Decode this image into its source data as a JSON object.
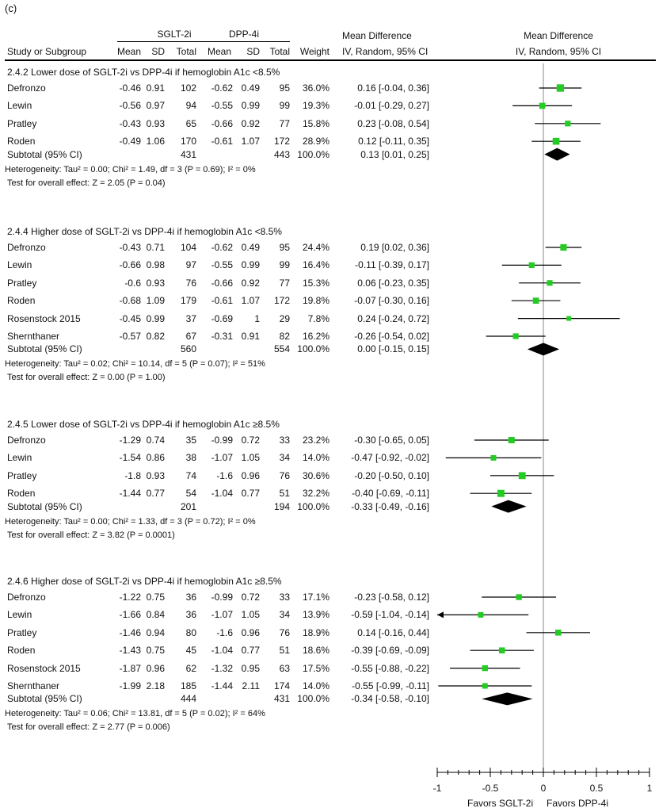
{
  "panel_label": "(c)",
  "header": {
    "group1": "SGLT-2i",
    "group2": "DPP-4i",
    "md_title": "Mean Difference",
    "md_sub": "IV, Random, 95% CI",
    "study_col": "Study or Subgroup",
    "mean": "Mean",
    "sd": "SD",
    "total": "Total",
    "weight": "Weight"
  },
  "subgroups": [
    {
      "title": "2.4.2 Lower dose of SGLT-2i vs DPP-4i if hemoglobin A1c <8.5%",
      "studies": [
        {
          "name": "Defronzo",
          "m1": "-0.46",
          "sd1": "0.91",
          "n1": "102",
          "m2": "-0.62",
          "sd2": "0.49",
          "n2": "95",
          "weight": "36.0%",
          "ci": "0.16 [-0.04, 0.36]"
        },
        {
          "name": "Lewin",
          "m1": "-0.56",
          "sd1": "0.97",
          "n1": "94",
          "m2": "-0.55",
          "sd2": "0.99",
          "n2": "99",
          "weight": "19.3%",
          "ci": "-0.01 [-0.29, 0.27]"
        },
        {
          "name": "Pratley",
          "m1": "-0.43",
          "sd1": "0.93",
          "n1": "65",
          "m2": "-0.66",
          "sd2": "0.92",
          "n2": "77",
          "weight": "15.8%",
          "ci": "0.23 [-0.08, 0.54]"
        },
        {
          "name": "Roden",
          "m1": "-0.49",
          "sd1": "1.06",
          "n1": "170",
          "m2": "-0.61",
          "sd2": "1.07",
          "n2": "172",
          "weight": "28.9%",
          "ci": "0.12 [-0.11, 0.35]"
        }
      ],
      "subtotal": {
        "label": "Subtotal (95% CI)",
        "n1": "431",
        "n2": "443",
        "weight": "100.0%",
        "ci": "0.13 [0.01, 0.25]"
      },
      "heterogeneity": "Heterogeneity: Tau² = 0.00; Chi² = 1.49, df = 3 (P = 0.69); I² = 0%",
      "overall": "Test for overall effect: Z = 2.05 (P = 0.04)"
    },
    {
      "title": "2.4.4 Higher dose of SGLT-2i vs DPP-4i if hemoglobin A1c <8.5%",
      "studies": [
        {
          "name": "Defronzo",
          "m1": "-0.43",
          "sd1": "0.71",
          "n1": "104",
          "m2": "-0.62",
          "sd2": "0.49",
          "n2": "95",
          "weight": "24.4%",
          "ci": "0.19 [0.02, 0.36]"
        },
        {
          "name": "Lewin",
          "m1": "-0.66",
          "sd1": "0.98",
          "n1": "97",
          "m2": "-0.55",
          "sd2": "0.99",
          "n2": "99",
          "weight": "16.4%",
          "ci": "-0.11 [-0.39, 0.17]"
        },
        {
          "name": "Pratley",
          "m1": "-0.6",
          "sd1": "0.93",
          "n1": "76",
          "m2": "-0.66",
          "sd2": "0.92",
          "n2": "77",
          "weight": "15.3%",
          "ci": "0.06 [-0.23, 0.35]"
        },
        {
          "name": "Roden",
          "m1": "-0.68",
          "sd1": "1.09",
          "n1": "179",
          "m2": "-0.61",
          "sd2": "1.07",
          "n2": "172",
          "weight": "19.8%",
          "ci": "-0.07 [-0.30, 0.16]"
        },
        {
          "name": "Rosenstock 2015",
          "m1": "-0.45",
          "sd1": "0.99",
          "n1": "37",
          "m2": "-0.69",
          "sd2": "1",
          "n2": "29",
          "weight": "7.8%",
          "ci": "0.24 [-0.24, 0.72]"
        },
        {
          "name": "Shernthaner",
          "m1": "-0.57",
          "sd1": "0.82",
          "n1": "67",
          "m2": "-0.31",
          "sd2": "0.91",
          "n2": "82",
          "weight": "16.2%",
          "ci": "-0.26 [-0.54, 0.02]"
        }
      ],
      "subtotal": {
        "label": "Subtotal (95% CI)",
        "n1": "560",
        "n2": "554",
        "weight": "100.0%",
        "ci": "0.00 [-0.15, 0.15]"
      },
      "heterogeneity": "Heterogeneity: Tau² = 0.02; Chi² = 10.14, df = 5 (P = 0.07); I² = 51%",
      "overall": "Test for overall effect: Z = 0.00 (P = 1.00)"
    },
    {
      "title": "2.4.5 Lower dose of SGLT-2i vs DPP-4i if hemoglobin A1c ≥8.5%",
      "studies": [
        {
          "name": "Defronzo",
          "m1": "-1.29",
          "sd1": "0.74",
          "n1": "35",
          "m2": "-0.99",
          "sd2": "0.72",
          "n2": "33",
          "weight": "23.2%",
          "ci": "-0.30 [-0.65, 0.05]"
        },
        {
          "name": "Lewin",
          "m1": "-1.54",
          "sd1": "0.86",
          "n1": "38",
          "m2": "-1.07",
          "sd2": "1.05",
          "n2": "34",
          "weight": "14.0%",
          "ci": "-0.47 [-0.92, -0.02]"
        },
        {
          "name": "Pratley",
          "m1": "-1.8",
          "sd1": "0.93",
          "n1": "74",
          "m2": "-1.6",
          "sd2": "0.96",
          "n2": "76",
          "weight": "30.6%",
          "ci": "-0.20 [-0.50, 0.10]"
        },
        {
          "name": "Roden",
          "m1": "-1.44",
          "sd1": "0.77",
          "n1": "54",
          "m2": "-1.04",
          "sd2": "0.77",
          "n2": "51",
          "weight": "32.2%",
          "ci": "-0.40 [-0.69, -0.11]"
        }
      ],
      "subtotal": {
        "label": "Subtotal (95% CI)",
        "n1": "201",
        "n2": "194",
        "weight": "100.0%",
        "ci": "-0.33 [-0.49, -0.16]"
      },
      "heterogeneity": "Heterogeneity: Tau² = 0.00; Chi² = 1.33, df = 3 (P = 0.72); I² = 0%",
      "overall": "Test for overall effect: Z = 3.82 (P = 0.0001)"
    },
    {
      "title": "2.4.6 Higher dose of SGLT-2i vs DPP-4i if hemoglobin A1c ≥8.5%",
      "studies": [
        {
          "name": "Defronzo",
          "m1": "-1.22",
          "sd1": "0.75",
          "n1": "36",
          "m2": "-0.99",
          "sd2": "0.72",
          "n2": "33",
          "weight": "17.1%",
          "ci": "-0.23 [-0.58, 0.12]"
        },
        {
          "name": "Lewin",
          "m1": "-1.66",
          "sd1": "0.84",
          "n1": "36",
          "m2": "-1.07",
          "sd2": "1.05",
          "n2": "34",
          "weight": "13.9%",
          "ci": "-0.59 [-1.04, -0.14]"
        },
        {
          "name": "Pratley",
          "m1": "-1.46",
          "sd1": "0.94",
          "n1": "80",
          "m2": "-1.6",
          "sd2": "0.96",
          "n2": "76",
          "weight": "18.9%",
          "ci": "0.14 [-0.16, 0.44]"
        },
        {
          "name": "Roden",
          "m1": "-1.43",
          "sd1": "0.75",
          "n1": "45",
          "m2": "-1.04",
          "sd2": "0.77",
          "n2": "51",
          "weight": "18.6%",
          "ci": "-0.39 [-0.69, -0.09]"
        },
        {
          "name": "Rosenstock 2015",
          "m1": "-1.87",
          "sd1": "0.96",
          "n1": "62",
          "m2": "-1.32",
          "sd2": "0.95",
          "n2": "63",
          "weight": "17.5%",
          "ci": "-0.55 [-0.88, -0.22]"
        },
        {
          "name": "Shernthaner",
          "m1": "-1.99",
          "sd1": "2.18",
          "n1": "185",
          "m2": "-1.44",
          "sd2": "2.11",
          "n2": "174",
          "weight": "14.0%",
          "ci": "-0.55 [-0.99, -0.11]"
        }
      ],
      "subtotal": {
        "label": "Subtotal (95% CI)",
        "n1": "444",
        "n2": "431",
        "weight": "100.0%",
        "ci": "-0.34 [-0.58, -0.10]"
      },
      "heterogeneity": "Heterogeneity: Tau² = 0.06; Chi² = 13.81, df = 5 (P = 0.02); I² = 64%",
      "overall": "Test for overall effect: Z = 2.77 (P = 0.006)"
    }
  ],
  "chart_data": {
    "type": "forest",
    "title": "Mean Difference, IV, Random, 95% CI",
    "xlim": [
      -1,
      1
    ],
    "xticks": [
      -1,
      -0.5,
      0,
      0.5,
      1
    ],
    "xtick_labels": [
      "-1",
      "-0.5",
      "0",
      "0.5",
      "1"
    ],
    "favors_left": "Favors SGLT-2i",
    "favors_right": "Favors DPP-4i",
    "marker_color": "#22cc22",
    "diamond_color": "#000000",
    "subgroups": [
      {
        "studies": [
          {
            "md": 0.16,
            "lo": -0.04,
            "hi": 0.36,
            "w": 36.0
          },
          {
            "md": -0.01,
            "lo": -0.29,
            "hi": 0.27,
            "w": 19.3
          },
          {
            "md": 0.23,
            "lo": -0.08,
            "hi": 0.54,
            "w": 15.8
          },
          {
            "md": 0.12,
            "lo": -0.11,
            "hi": 0.35,
            "w": 28.9
          }
        ],
        "pooled": {
          "md": 0.13,
          "lo": 0.01,
          "hi": 0.25
        }
      },
      {
        "studies": [
          {
            "md": 0.19,
            "lo": 0.02,
            "hi": 0.36,
            "w": 24.4
          },
          {
            "md": -0.11,
            "lo": -0.39,
            "hi": 0.17,
            "w": 16.4
          },
          {
            "md": 0.06,
            "lo": -0.23,
            "hi": 0.35,
            "w": 15.3
          },
          {
            "md": -0.07,
            "lo": -0.3,
            "hi": 0.16,
            "w": 19.8
          },
          {
            "md": 0.24,
            "lo": -0.24,
            "hi": 0.72,
            "w": 7.8
          },
          {
            "md": -0.26,
            "lo": -0.54,
            "hi": 0.02,
            "w": 16.2
          }
        ],
        "pooled": {
          "md": 0.0,
          "lo": -0.15,
          "hi": 0.15
        }
      },
      {
        "studies": [
          {
            "md": -0.3,
            "lo": -0.65,
            "hi": 0.05,
            "w": 23.2
          },
          {
            "md": -0.47,
            "lo": -0.92,
            "hi": -0.02,
            "w": 14.0
          },
          {
            "md": -0.2,
            "lo": -0.5,
            "hi": 0.1,
            "w": 30.6
          },
          {
            "md": -0.4,
            "lo": -0.69,
            "hi": -0.11,
            "w": 32.2
          }
        ],
        "pooled": {
          "md": -0.33,
          "lo": -0.49,
          "hi": -0.16
        }
      },
      {
        "studies": [
          {
            "md": -0.23,
            "lo": -0.58,
            "hi": 0.12,
            "w": 17.1
          },
          {
            "md": -0.59,
            "lo": -1.04,
            "hi": -0.14,
            "w": 13.9
          },
          {
            "md": 0.14,
            "lo": -0.16,
            "hi": 0.44,
            "w": 18.9
          },
          {
            "md": -0.39,
            "lo": -0.69,
            "hi": -0.09,
            "w": 18.6
          },
          {
            "md": -0.55,
            "lo": -0.88,
            "hi": -0.22,
            "w": 17.5
          },
          {
            "md": -0.55,
            "lo": -0.99,
            "hi": -0.11,
            "w": 14.0
          }
        ],
        "pooled": {
          "md": -0.34,
          "lo": -0.58,
          "hi": -0.1
        }
      }
    ]
  }
}
